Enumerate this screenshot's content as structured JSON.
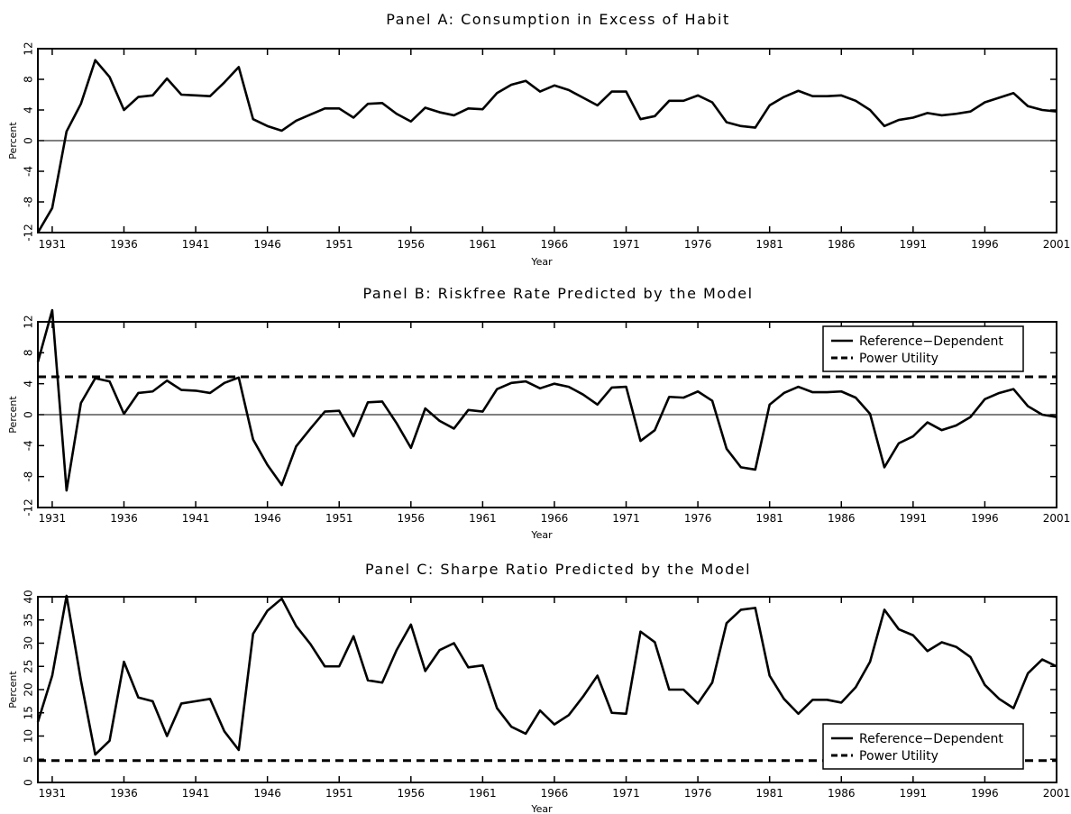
{
  "chart_data": [
    {
      "type": "line",
      "title": "Panel A: Consumption in Excess of Habit",
      "xlabel": "Year",
      "ylabel": "Percent",
      "xlim": [
        1930,
        2001
      ],
      "ylim": [
        -12,
        12
      ],
      "xticks": [
        1931,
        1936,
        1941,
        1946,
        1951,
        1956,
        1961,
        1966,
        1971,
        1976,
        1981,
        1986,
        1991,
        1996,
        2001
      ],
      "yticks": [
        -12,
        -8,
        -4,
        0,
        4,
        8,
        12
      ],
      "zero_line": true,
      "legend": null,
      "series": [
        {
          "name": "",
          "style": "solid",
          "x": [
            1930,
            1931,
            1932,
            1933,
            1934,
            1935,
            1936,
            1937,
            1938,
            1939,
            1940,
            1941,
            1942,
            1943,
            1944,
            1945,
            1946,
            1947,
            1948,
            1949,
            1950,
            1951,
            1952,
            1953,
            1954,
            1955,
            1956,
            1957,
            1958,
            1959,
            1960,
            1961,
            1962,
            1963,
            1964,
            1965,
            1966,
            1967,
            1968,
            1969,
            1970,
            1971,
            1972,
            1973,
            1974,
            1975,
            1976,
            1977,
            1978,
            1979,
            1980,
            1981,
            1982,
            1983,
            1984,
            1985,
            1986,
            1987,
            1988,
            1989,
            1990,
            1991,
            1992,
            1993,
            1994,
            1995,
            1996,
            1997,
            1998,
            1999,
            2000,
            2001
          ],
          "values": [
            -12,
            -8.8,
            1.2,
            4.8,
            10.5,
            8.3,
            4.0,
            5.7,
            5.9,
            8.1,
            6.0,
            5.9,
            5.8,
            7.6,
            9.6,
            2.8,
            1.9,
            1.3,
            2.6,
            3.4,
            4.2,
            4.2,
            3.0,
            4.8,
            4.9,
            3.5,
            2.5,
            4.3,
            3.7,
            3.3,
            4.2,
            4.1,
            6.2,
            7.3,
            7.8,
            6.4,
            7.2,
            6.6,
            5.6,
            4.6,
            6.4,
            6.4,
            2.8,
            3.2,
            5.2,
            5.2,
            5.9,
            5.0,
            2.4,
            1.9,
            1.7,
            4.6,
            5.7,
            6.5,
            5.8,
            5.8,
            5.9,
            5.2,
            4.0,
            1.9,
            2.7,
            3.0,
            3.6,
            3.3,
            3.5,
            3.8,
            5.0,
            5.6,
            6.2,
            4.5,
            4.0,
            3.8
          ]
        }
      ]
    },
    {
      "type": "line",
      "title": "Panel B: Riskfree Rate Predicted by the Model",
      "xlabel": "Year",
      "ylabel": "Percent",
      "xlim": [
        1930,
        2001
      ],
      "ylim": [
        -12,
        12
      ],
      "xticks": [
        1931,
        1936,
        1941,
        1946,
        1951,
        1956,
        1961,
        1966,
        1971,
        1976,
        1981,
        1986,
        1991,
        1996,
        2001
      ],
      "yticks": [
        -12,
        -8,
        -4,
        0,
        4,
        8,
        12
      ],
      "zero_line": true,
      "legend": "top-right",
      "series": [
        {
          "name": "Reference−Dependent",
          "style": "solid",
          "x": [
            1930,
            1931,
            1932,
            1933,
            1934,
            1935,
            1936,
            1937,
            1938,
            1939,
            1940,
            1941,
            1942,
            1943,
            1944,
            1945,
            1946,
            1947,
            1948,
            1949,
            1950,
            1951,
            1952,
            1953,
            1954,
            1955,
            1956,
            1957,
            1958,
            1959,
            1960,
            1961,
            1962,
            1963,
            1964,
            1965,
            1966,
            1967,
            1968,
            1969,
            1970,
            1971,
            1972,
            1973,
            1974,
            1975,
            1976,
            1977,
            1978,
            1979,
            1980,
            1981,
            1982,
            1983,
            1984,
            1985,
            1986,
            1987,
            1988,
            1989,
            1990,
            1991,
            1992,
            1993,
            1994,
            1995,
            1996,
            1997,
            1998,
            1999,
            2000,
            2001
          ],
          "values": [
            6.8,
            13.5,
            -9.8,
            1.5,
            4.7,
            4.3,
            0.1,
            2.8,
            3.0,
            4.4,
            3.2,
            3.1,
            2.8,
            4.1,
            4.8,
            -3.2,
            -6.5,
            -9.1,
            -4.1,
            -1.8,
            0.4,
            0.5,
            -2.8,
            1.6,
            1.7,
            -1.1,
            -4.3,
            0.8,
            -0.8,
            -1.8,
            0.6,
            0.4,
            3.3,
            4.1,
            4.3,
            3.4,
            4.0,
            3.6,
            2.6,
            1.3,
            3.5,
            3.6,
            -3.4,
            -2.0,
            2.3,
            2.2,
            3.0,
            1.8,
            -4.4,
            -6.8,
            -7.1,
            1.3,
            2.8,
            3.6,
            2.9,
            2.9,
            3.0,
            2.2,
            0.1,
            -6.8,
            -3.7,
            -2.8,
            -1.0,
            -2.0,
            -1.4,
            -0.3,
            2.0,
            2.8,
            3.3,
            1.1,
            0.0,
            -0.3
          ]
        },
        {
          "name": "Power Utility",
          "style": "dashed",
          "x": [
            1930,
            2001
          ],
          "values": [
            4.9,
            4.9
          ]
        }
      ]
    },
    {
      "type": "line",
      "title": "Panel C: Sharpe Ratio Predicted by the Model",
      "xlabel": "Year",
      "ylabel": "Percent",
      "xlim": [
        1930,
        2001
      ],
      "ylim": [
        0,
        40
      ],
      "xticks": [
        1931,
        1936,
        1941,
        1946,
        1951,
        1956,
        1961,
        1966,
        1971,
        1976,
        1981,
        1986,
        1991,
        1996,
        2001
      ],
      "yticks": [
        0,
        5,
        10,
        15,
        20,
        25,
        30,
        35,
        40
      ],
      "zero_line": false,
      "legend": "bottom-right",
      "series": [
        {
          "name": "Reference−Dependent",
          "style": "solid",
          "x": [
            1930,
            1931,
            1932,
            1933,
            1934,
            1935,
            1936,
            1937,
            1938,
            1939,
            1940,
            1941,
            1942,
            1943,
            1944,
            1945,
            1946,
            1947,
            1948,
            1949,
            1950,
            1951,
            1952,
            1953,
            1954,
            1955,
            1956,
            1957,
            1958,
            1959,
            1960,
            1961,
            1962,
            1963,
            1964,
            1965,
            1966,
            1967,
            1968,
            1969,
            1970,
            1971,
            1972,
            1973,
            1974,
            1975,
            1976,
            1977,
            1978,
            1979,
            1980,
            1981,
            1982,
            1983,
            1984,
            1985,
            1986,
            1987,
            1988,
            1989,
            1990,
            1991,
            1992,
            1993,
            1994,
            1995,
            1996,
            1997,
            1998,
            1999,
            2000,
            2001
          ],
          "values": [
            13,
            23,
            40.2,
            22,
            6,
            9,
            26,
            18.3,
            17.5,
            10,
            17,
            17.5,
            18,
            11,
            7,
            32,
            37,
            39.6,
            33.7,
            29.8,
            25,
            25,
            31.5,
            22,
            21.5,
            28.5,
            34,
            24,
            28.5,
            30,
            24.8,
            25.2,
            16,
            12,
            10.5,
            15.5,
            12.5,
            14.5,
            18.5,
            23,
            15,
            14.8,
            32.5,
            30.2,
            20,
            20,
            17,
            21.5,
            34.3,
            37.2,
            37.6,
            23,
            18,
            14.8,
            17.8,
            17.8,
            17.2,
            20.5,
            26,
            37.2,
            33,
            31.7,
            28.3,
            30.2,
            29.2,
            27,
            21,
            18,
            16,
            23.5,
            26.5,
            25
          ]
        },
        {
          "name": "Power Utility",
          "style": "dashed",
          "x": [
            1930,
            2001
          ],
          "values": [
            4.7,
            4.7
          ]
        }
      ]
    }
  ]
}
